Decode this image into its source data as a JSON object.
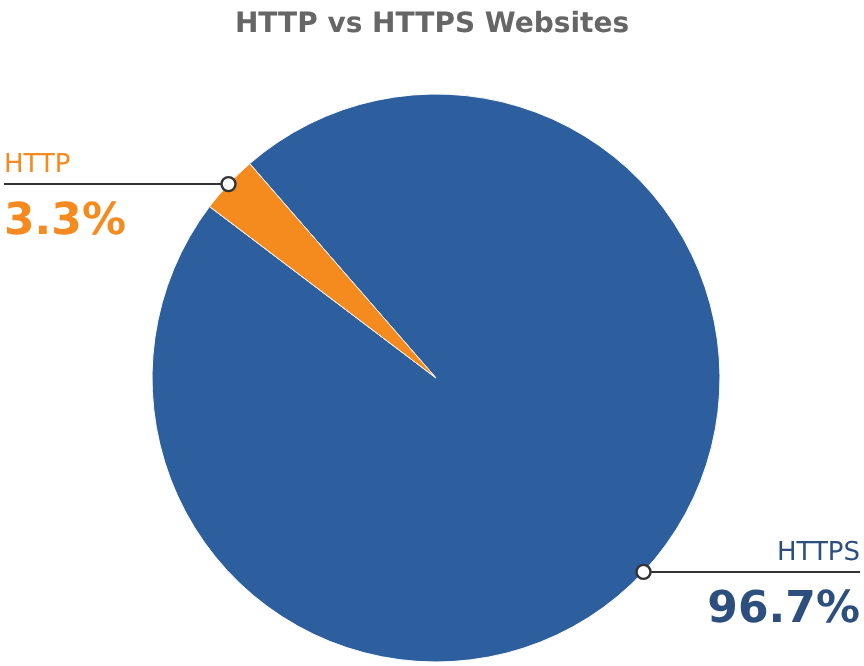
{
  "chart_data": {
    "type": "pie",
    "title": "HTTP vs HTTPS Websites",
    "categories": [
      "HTTPS",
      "HTTP"
    ],
    "values": [
      96.7,
      3.3
    ],
    "value_labels": [
      "96.7%",
      "3.3%"
    ],
    "colors": [
      "#2d5f9e",
      "#f58a1f"
    ],
    "data_labels": true,
    "legend": false
  }
}
